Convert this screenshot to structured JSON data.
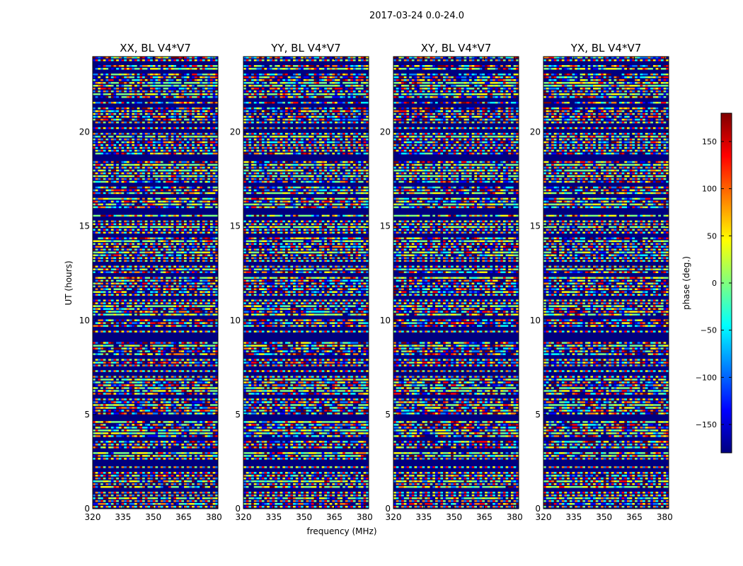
{
  "figure": {
    "suptitle": "2017-03-24 0.0-24.0",
    "xlabel": "frequency (MHz)",
    "ylabel": "UT (hours)"
  },
  "colors": {
    "background": "#00007f",
    "jet_stops": [
      "#00007f",
      "#0000ff",
      "#007fff",
      "#00ffff",
      "#7fff7f",
      "#ffff00",
      "#ff7f00",
      "#ff0000",
      "#7f0000"
    ]
  },
  "chart_data": {
    "type": "heatmap",
    "colormap": "jet",
    "x_range": [
      320,
      382
    ],
    "y_range": [
      0,
      24
    ],
    "x_ticks": [
      320,
      335,
      350,
      365,
      380
    ],
    "y_ticks": [
      0,
      5,
      10,
      15,
      20
    ],
    "panels": [
      {
        "title": "XX, BL V4*V7",
        "polarization": "XX"
      },
      {
        "title": "YY, BL V4*V7",
        "polarization": "YY"
      },
      {
        "title": "XY, BL V4*V7",
        "polarization": "XY"
      },
      {
        "title": "YX, BL V4*V7",
        "polarization": "YX"
      }
    ],
    "colorbar": {
      "label": "phase (deg.)",
      "range": [
        -180,
        180
      ],
      "ticks": [
        -150,
        -100,
        -50,
        0,
        50,
        100,
        150
      ]
    }
  }
}
